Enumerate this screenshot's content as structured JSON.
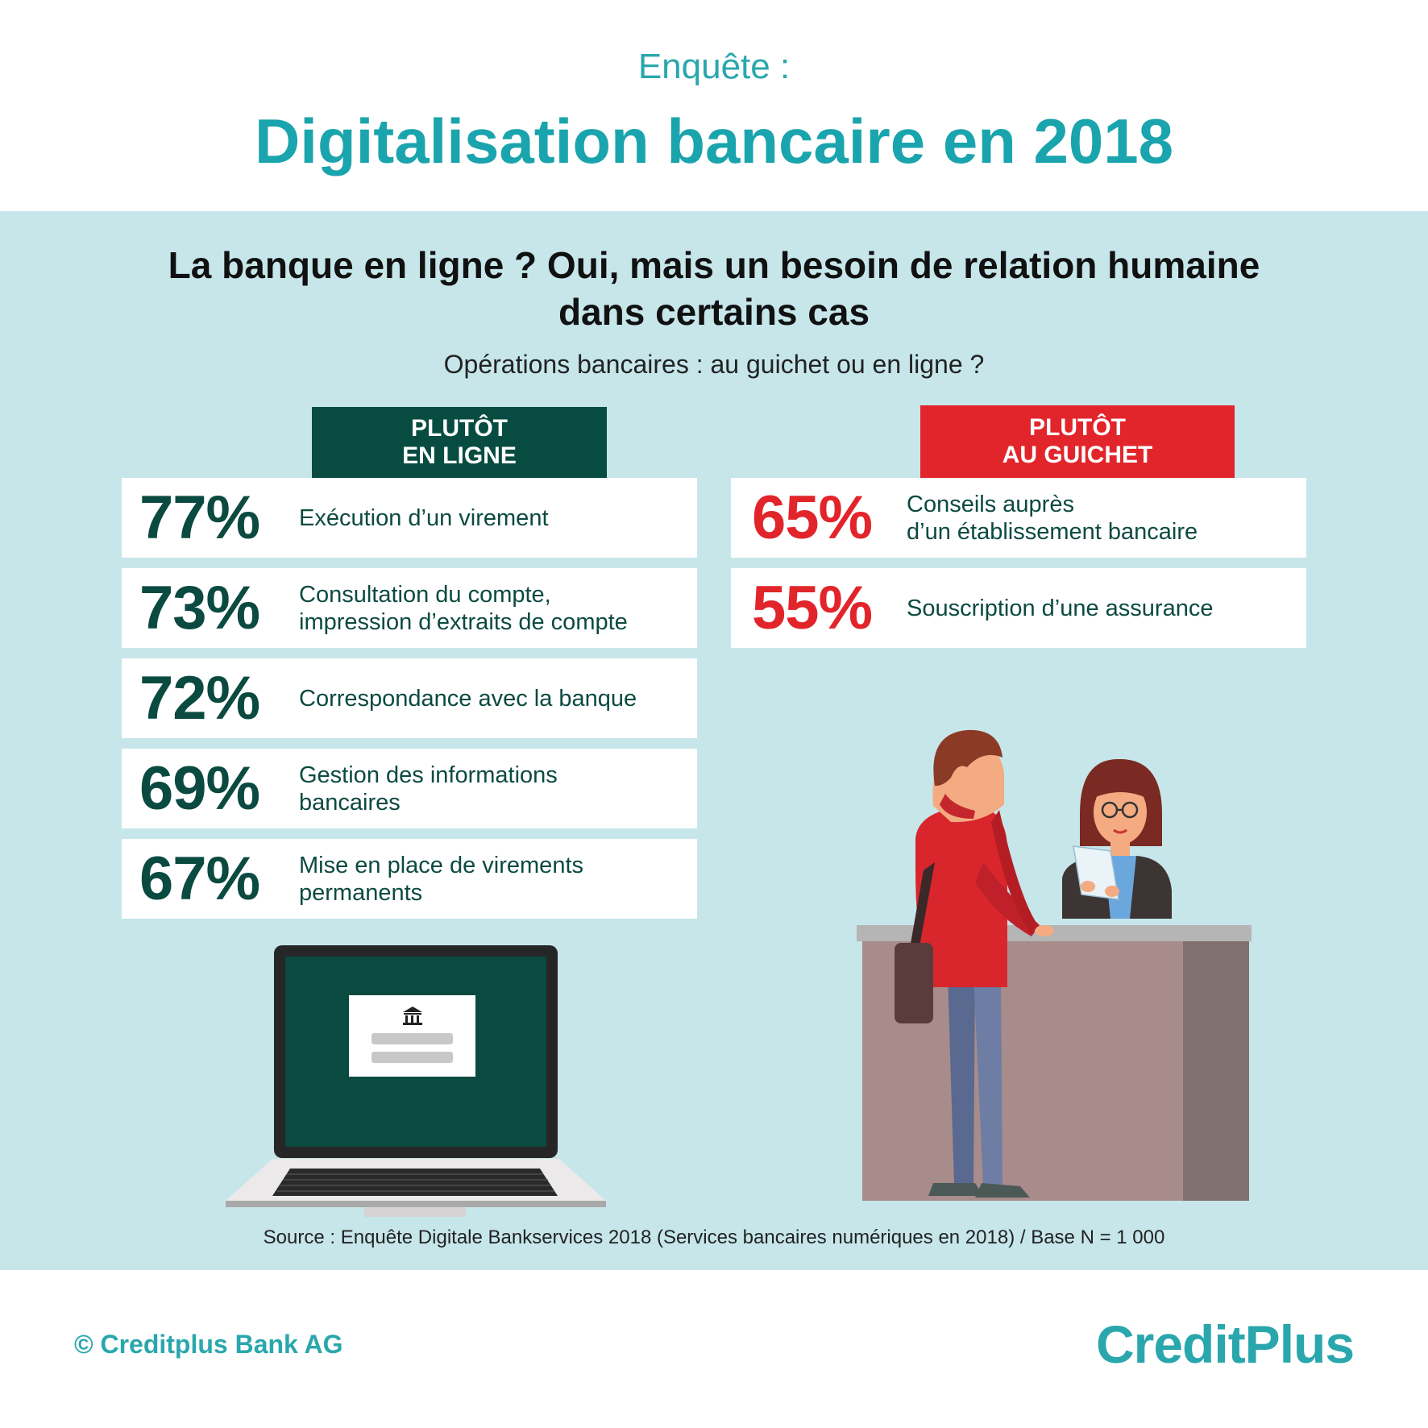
{
  "header": {
    "kicker": "Enquête :",
    "title": "Digitalisation bancaire en 2018"
  },
  "headline": {
    "line1": "La banque en ligne ? Oui, mais un besoin de relation humaine",
    "line2": "dans certains cas"
  },
  "question": "Opérations bancaires : au guichet ou en ligne ?",
  "online": {
    "tab_line1": "PLUTÔT",
    "tab_line2": "EN LIGNE",
    "color": "#084c41",
    "items": [
      {
        "pct": "77%",
        "label_line1": "Exécution d’un virement",
        "label_line2": ""
      },
      {
        "pct": "73%",
        "label_line1": "Consultation du compte,",
        "label_line2": "impression d’extraits de compte"
      },
      {
        "pct": "72%",
        "label_line1": "Correspondance avec la banque",
        "label_line2": ""
      },
      {
        "pct": "69%",
        "label_line1": "Gestion des informations",
        "label_line2": "bancaires"
      },
      {
        "pct": "67%",
        "label_line1": "Mise en place de virements",
        "label_line2": "permanents"
      }
    ]
  },
  "counter": {
    "tab_line1": "PLUTÔT",
    "tab_line2": "AU GUICHET",
    "color": "#e1252b",
    "items": [
      {
        "pct": "65%",
        "label_line1": "Conseils auprès",
        "label_line2": "d’un établissement bancaire"
      },
      {
        "pct": "55%",
        "label_line1": "Souscription d’une assurance",
        "label_line2": ""
      }
    ]
  },
  "illustrations": {
    "laptop": "laptop-with-bank-icon",
    "bank_icon": "bank-building-icon",
    "counter_scene": "customer-and-advisor-at-bank-counter"
  },
  "source": "Source : Enquête Digitale Bankservices 2018 (Services bancaires numériques en 2018) / Base N = 1 000",
  "footer": {
    "copyright": "© Creditplus Bank AG",
    "logo_text": "CreditPlus",
    "logo_color": "#2aa7ad"
  }
}
